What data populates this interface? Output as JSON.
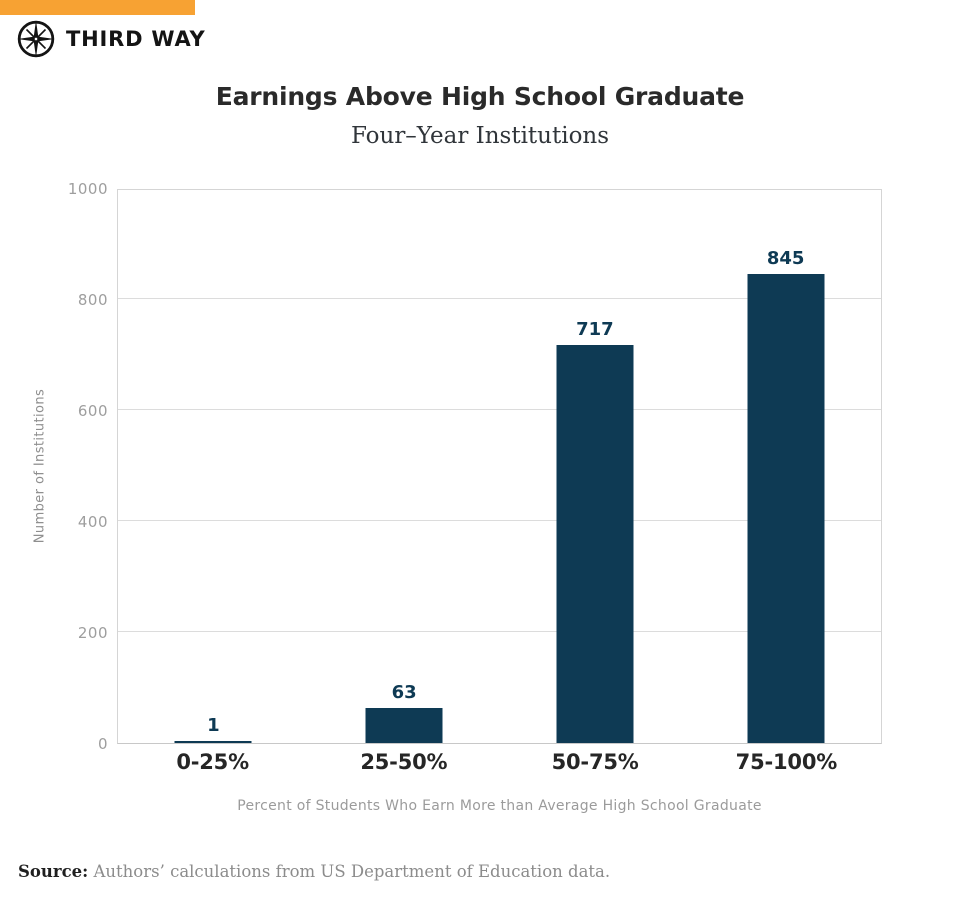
{
  "brand": {
    "name": "THIRD WAY",
    "logo_icon": "compass-star-icon",
    "accent_color": "#F7A233",
    "text_color": "#141414"
  },
  "chart_data": {
    "type": "bar",
    "title": "Earnings Above High School Graduate",
    "subtitle": "Four–Year Institutions",
    "categories": [
      "0-25%",
      "25-50%",
      "50-75%",
      "75-100%"
    ],
    "values": [
      1,
      63,
      717,
      845
    ],
    "xlabel": "Percent of Students Who Earn More than Average High School Graduate",
    "ylabel": "Number of Institutions",
    "ylim": [
      0,
      1000
    ],
    "yticks": [
      0,
      200,
      400,
      600,
      800,
      1000
    ],
    "grid": true,
    "legend": "none",
    "bar_color": "#0E3A54",
    "value_label_color": "#0E3A54",
    "grid_color": "#DCDCDC",
    "axis_text_color": "#9E9E9E"
  },
  "source": {
    "label": "Source:",
    "text": "Authors’ calculations from US Department of Education data."
  }
}
